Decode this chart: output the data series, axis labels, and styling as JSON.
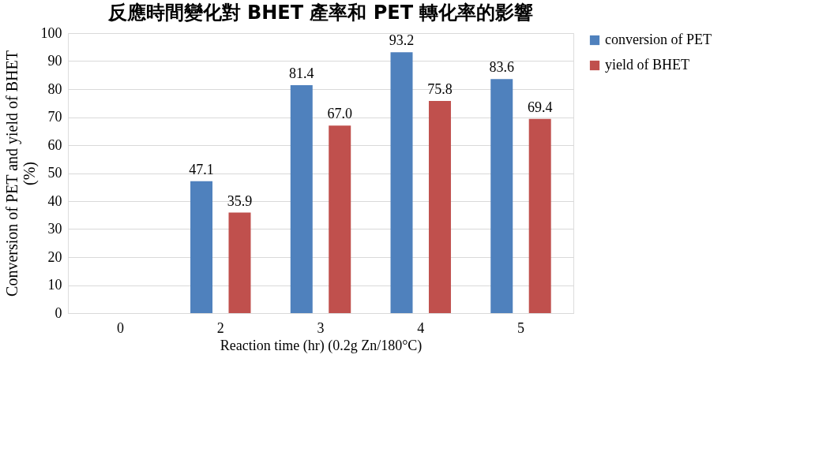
{
  "chart_data": {
    "type": "bar",
    "title": "反應時間變化對 BHET 產率和 PET 轉化率的影響",
    "xlabel": "Reaction time (hr) (0.2g Zn/180°C)",
    "ylabel": "Conversion of PET and yield of BHET (%)",
    "categories": [
      "0",
      "2",
      "3",
      "4",
      "5"
    ],
    "series": [
      {
        "name": "conversion of PET",
        "color": "#4f81bd",
        "values": [
          null,
          47.1,
          81.4,
          93.2,
          83.6
        ],
        "value_labels": [
          null,
          "47.1",
          "81.4",
          "93.2",
          "83.6"
        ]
      },
      {
        "name": "yield of BHET",
        "color": "#c0504d",
        "values": [
          null,
          35.9,
          67.0,
          75.8,
          69.4
        ],
        "value_labels": [
          null,
          "35.9",
          "67.0",
          "75.8",
          "69.4"
        ]
      }
    ],
    "ylim": [
      0,
      100
    ],
    "yticks": [
      0,
      10,
      20,
      30,
      40,
      50,
      60,
      70,
      80,
      90,
      100
    ],
    "grid": "y",
    "legend": "right"
  }
}
